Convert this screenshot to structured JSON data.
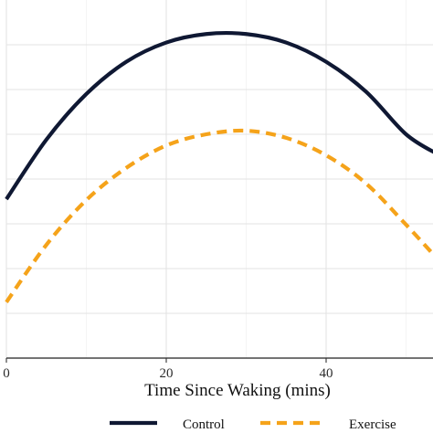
{
  "chart_data": {
    "type": "line",
    "title": "",
    "xlabel": "Time Since Waking (mins)",
    "ylabel": "",
    "xlim": [
      0,
      54
    ],
    "ylim": [
      0,
      8
    ],
    "x_ticks": [
      0,
      20,
      40
    ],
    "y_gridlines": [
      1,
      2,
      3,
      4,
      5,
      6,
      7
    ],
    "grid": true,
    "legend_position": "bottom",
    "series": [
      {
        "name": "Control",
        "color": "#0f1833",
        "style": "solid",
        "x": [
          0,
          5,
          10,
          15,
          20,
          25,
          30,
          35,
          40,
          45,
          50,
          54
        ],
        "y": [
          3.55,
          4.88,
          5.9,
          6.62,
          7.05,
          7.24,
          7.24,
          7.05,
          6.62,
          5.95,
          5.0,
          4.55
        ]
      },
      {
        "name": "Exercise",
        "color": "#f5a31a",
        "style": "dashed",
        "x": [
          0,
          5,
          10,
          15,
          20,
          25,
          30,
          35,
          40,
          45,
          50,
          54
        ],
        "y": [
          1.25,
          2.53,
          3.53,
          4.25,
          4.75,
          5.0,
          5.08,
          4.92,
          4.53,
          3.9,
          2.98,
          2.2
        ]
      }
    ]
  }
}
